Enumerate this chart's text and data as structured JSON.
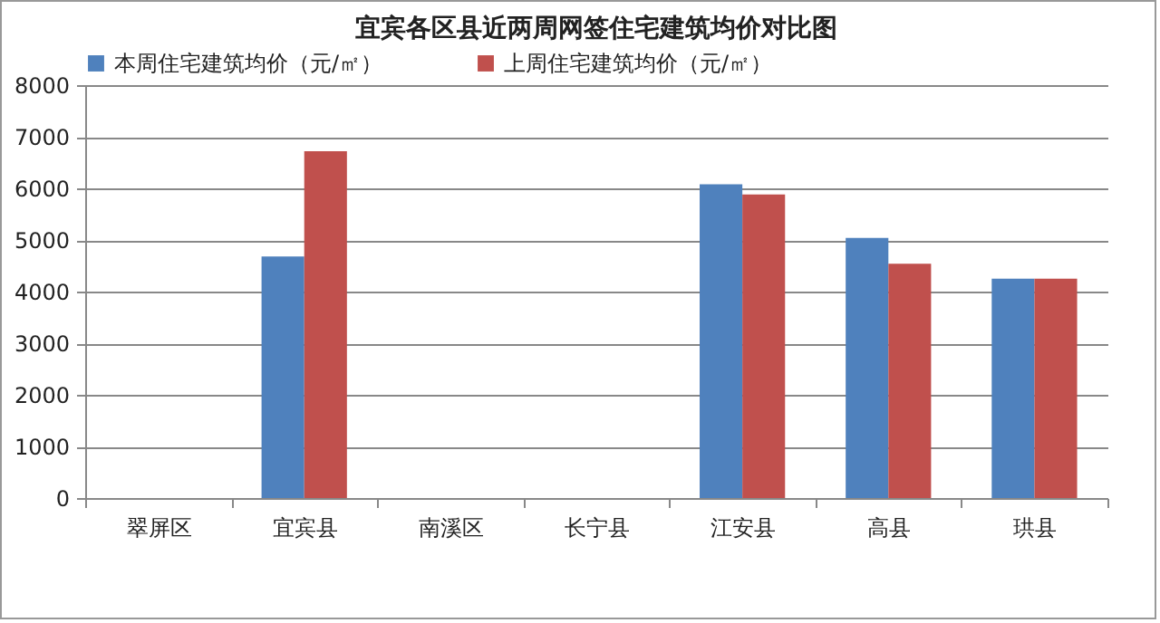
{
  "chart_data": {
    "type": "bar",
    "title": "宜宾各区县近两周网签住宅建筑均价对比图",
    "categories": [
      "翠屏区",
      "宜宾县",
      "南溪区",
      "长宁县",
      "江安县",
      "高县",
      "珙县"
    ],
    "series": [
      {
        "name": "本周住宅建筑均价（元/㎡）",
        "color": "#4f81bd",
        "values": [
          null,
          4680,
          null,
          null,
          6080,
          5040,
          4250
        ]
      },
      {
        "name": "上周住宅建筑均价（元/㎡）",
        "color": "#c0504d",
        "values": [
          null,
          6720,
          null,
          null,
          5880,
          4540,
          4250
        ]
      }
    ],
    "ylim": [
      0,
      8000
    ],
    "yticks": [
      0,
      1000,
      2000,
      3000,
      4000,
      5000,
      6000,
      7000,
      8000
    ],
    "grid": "y",
    "legend": "top"
  }
}
